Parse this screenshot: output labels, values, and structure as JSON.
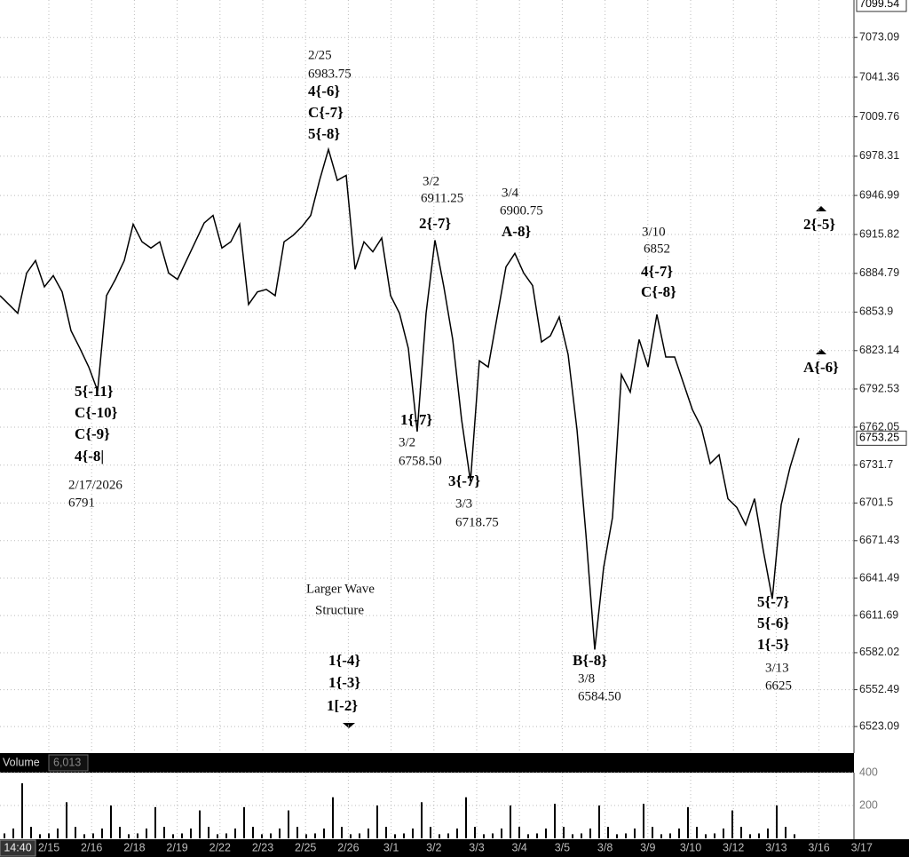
{
  "time_label": "14:40",
  "dates": [
    "2/15",
    "2/16",
    "2/18",
    "2/19",
    "2/22",
    "2/23",
    "2/25",
    "2/26",
    "3/1",
    "3/2",
    "3/3",
    "3/4",
    "3/5",
    "3/8",
    "3/9",
    "3/10",
    "3/12",
    "3/13",
    "3/16",
    "3/17"
  ],
  "chart_data": [
    {
      "type": "line",
      "color": "#000000",
      "grid": true,
      "ylim": [
        6504,
        7103
      ],
      "yticks": [
        7073.09,
        7041.36,
        7009.76,
        6978.31,
        6946.99,
        6915.82,
        6884.79,
        6853.9,
        6823.14,
        6792.53,
        6762.05,
        6731.7,
        6701.5,
        6671.43,
        6641.49,
        6611.69,
        6582.02,
        6552.49,
        6523.09
      ],
      "top_price": 7099.54,
      "last_price": 6753.25,
      "values": [
        6867,
        6860,
        6853,
        6885,
        6895,
        6874,
        6883,
        6870,
        6839,
        6825,
        6810,
        6791,
        6867,
        6880,
        6895,
        6924,
        6910,
        6905,
        6910,
        6885,
        6880,
        6895,
        6910,
        6925,
        6931,
        6905,
        6910,
        6924,
        6860,
        6870,
        6872,
        6867,
        6910,
        6915,
        6922,
        6931,
        6959,
        6983.75,
        6959,
        6963,
        6888,
        6910,
        6902,
        6913,
        6867,
        6853,
        6825,
        6758.5,
        6853,
        6911.25,
        6874,
        6832,
        6768,
        6718.75,
        6815,
        6810,
        6850,
        6890,
        6900.75,
        6885,
        6875,
        6830,
        6835,
        6850,
        6820,
        6760,
        6677,
        6584.5,
        6650,
        6690,
        6804,
        6790,
        6832,
        6810,
        6852,
        6818,
        6818,
        6797,
        6776,
        6762,
        6733,
        6740,
        6705,
        6698,
        6684,
        6705,
        6663,
        6625,
        6700,
        6730,
        6753.25
      ],
      "annotations": [
        {
          "text": "2/25",
          "bold": false
        },
        {
          "text": "6983.75",
          "bold": false
        },
        {
          "text": "4{-6}",
          "bold": true
        },
        {
          "text": "C{-7}",
          "bold": true
        },
        {
          "text": "5{-8}",
          "bold": true
        },
        {
          "text": "3/2",
          "bold": false
        },
        {
          "text": "6911.25",
          "bold": false
        },
        {
          "text": "2{-7}",
          "bold": true
        },
        {
          "text": "3/4",
          "bold": false
        },
        {
          "text": "6900.75",
          "bold": false
        },
        {
          "text": "A-8}",
          "bold": true
        },
        {
          "text": "3/10",
          "bold": false
        },
        {
          "text": "6852",
          "bold": false
        },
        {
          "text": "4{-7}",
          "bold": true
        },
        {
          "text": "C{-8}",
          "bold": true
        },
        {
          "text": "2{-5}",
          "bold": true
        },
        {
          "text": "A{-6}",
          "bold": true
        },
        {
          "text": "5{-11}",
          "bold": true
        },
        {
          "text": "C{-10}",
          "bold": true
        },
        {
          "text": "C{-9}",
          "bold": true
        },
        {
          "text": "4{-8|",
          "bold": true
        },
        {
          "text": "2/17/2026",
          "bold": false
        },
        {
          "text": "6791",
          "bold": false
        },
        {
          "text": "1{-7}",
          "bold": true
        },
        {
          "text": "3/2",
          "bold": false
        },
        {
          "text": "6758.50",
          "bold": false
        },
        {
          "text": "3{-7}",
          "bold": true
        },
        {
          "text": "3/3",
          "bold": false
        },
        {
          "text": "6718.75",
          "bold": false
        },
        {
          "text": "Larger Wave",
          "bold": false
        },
        {
          "text": "Structure",
          "bold": false
        },
        {
          "text": "1{-4}",
          "bold": true
        },
        {
          "text": "1{-3}",
          "bold": true
        },
        {
          "text": "1[-2}",
          "bold": true
        },
        {
          "text": "B{-8}",
          "bold": true
        },
        {
          "text": "3/8",
          "bold": false
        },
        {
          "text": "6584.50",
          "bold": false
        },
        {
          "text": "5{-7}",
          "bold": true
        },
        {
          "text": "5{-6}",
          "bold": true
        },
        {
          "text": "1{-5}",
          "bold": true
        },
        {
          "text": "3/13",
          "bold": false
        },
        {
          "text": "6625",
          "bold": false
        }
      ]
    },
    {
      "type": "bar",
      "title": "Volume",
      "color": "#000000",
      "current": {
        "value": 6013,
        "label": "6,013"
      },
      "ylim": [
        0,
        400
      ],
      "yticks": [
        200,
        400
      ],
      "values": [
        30,
        60,
        335,
        70,
        25,
        30,
        60,
        220,
        70,
        25,
        30,
        60,
        200,
        70,
        25,
        30,
        60,
        190,
        70,
        25,
        30,
        60,
        170,
        70,
        25,
        30,
        60,
        190,
        70,
        25,
        30,
        60,
        170,
        70,
        25,
        30,
        60,
        250,
        70,
        25,
        30,
        60,
        200,
        70,
        25,
        30,
        60,
        220,
        70,
        25,
        30,
        60,
        250,
        70,
        25,
        30,
        60,
        200,
        70,
        25,
        30,
        60,
        210,
        70,
        25,
        30,
        60,
        200,
        70,
        25,
        30,
        60,
        210,
        70,
        25,
        30,
        60,
        190,
        70,
        25,
        30,
        60,
        170,
        70,
        25,
        30,
        60,
        200,
        70,
        25
      ]
    }
  ]
}
